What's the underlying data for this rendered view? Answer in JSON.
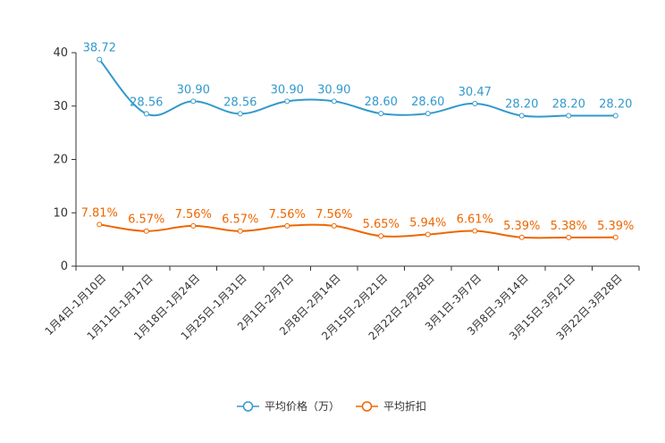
{
  "chart_data": {
    "type": "line",
    "categories": [
      "1月4日-1月10日",
      "1月11日-1月17日",
      "1月18日-1月24日",
      "1月25日-1月31日",
      "2月1日-2月7日",
      "2月8日-2月14日",
      "2月15日-2月21日",
      "2月22日-2月28日",
      "3月1日-3月7日",
      "3月8日-3月14日",
      "3月15日-3月21日",
      "3月22日-3月28日"
    ],
    "ylim": [
      0,
      40
    ],
    "yticks": [
      0,
      10,
      20,
      30,
      40
    ],
    "series": [
      {
        "name": "平均价格（万）",
        "color": "#3399cc",
        "values": [
          38.72,
          28.56,
          30.9,
          28.56,
          30.9,
          30.9,
          28.6,
          28.6,
          30.47,
          28.2,
          28.2,
          28.2
        ],
        "labels": [
          "38.72",
          "28.56",
          "30.90",
          "28.56",
          "30.90",
          "30.90",
          "28.60",
          "28.60",
          "30.47",
          "28.20",
          "28.20",
          "28.20"
        ]
      },
      {
        "name": "平均折扣",
        "color": "#ee6600",
        "values": [
          7.81,
          6.57,
          7.56,
          6.57,
          7.56,
          7.56,
          5.65,
          5.94,
          6.61,
          5.39,
          5.38,
          5.39
        ],
        "labels": [
          "7.81%",
          "6.57%",
          "7.56%",
          "6.57%",
          "7.56%",
          "7.56%",
          "5.65%",
          "5.94%",
          "6.61%",
          "5.39%",
          "5.38%",
          "5.39%"
        ]
      }
    ],
    "legend_position": "bottom-center"
  }
}
